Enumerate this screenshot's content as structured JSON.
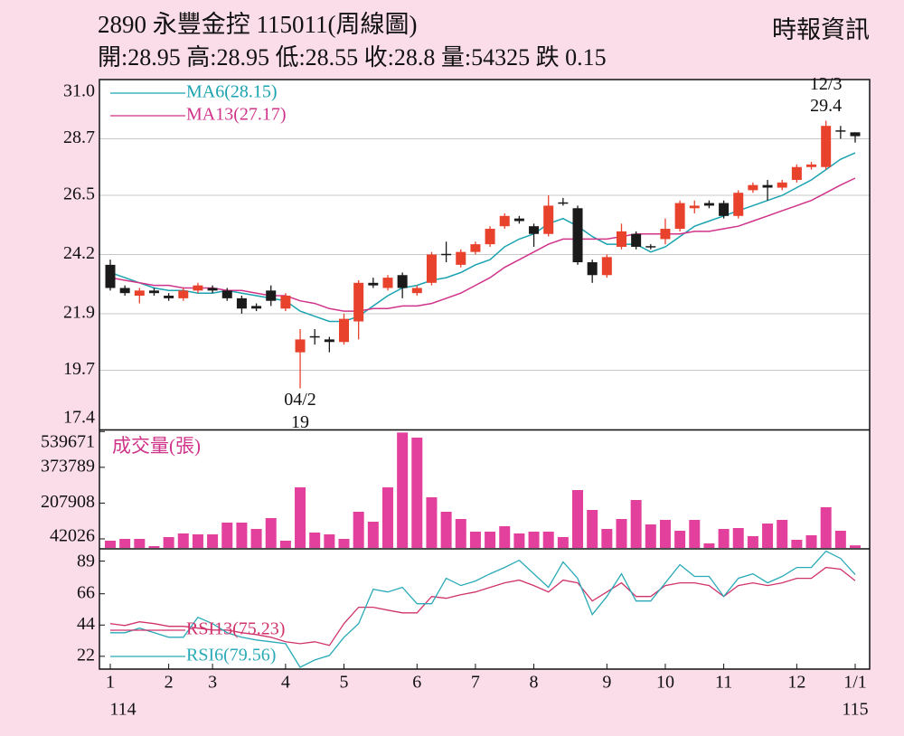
{
  "chart_data": {
    "type": "candlestick",
    "title": "2890  永豐金控 115011(周線圖)",
    "source": "時報資訊",
    "info": "開:28.95 高:28.95 低:28.55 收:28.8 量:54325 跌 0.15",
    "open": [
      23.8,
      22.9,
      22.6,
      22.8,
      22.6,
      22.5,
      22.8,
      22.9,
      22.8,
      22.5,
      22.2,
      22.8,
      22.1,
      20.4,
      21.0,
      20.9,
      20.8,
      21.6,
      23.1,
      22.9,
      23.4,
      22.7,
      23.1,
      24.2,
      23.8,
      24.3,
      24.6,
      25.3,
      25.6,
      25.3,
      25.0,
      26.2,
      26.0,
      23.9,
      23.4,
      24.5,
      25.0,
      24.5,
      24.8,
      25.2,
      26.0,
      26.2,
      26.2,
      25.7,
      26.7,
      26.9,
      26.8,
      27.1,
      27.6,
      27.6,
      29.0,
      28.95
    ],
    "high": [
      24.0,
      23.0,
      22.9,
      22.9,
      22.7,
      22.9,
      23.1,
      23.0,
      22.9,
      22.6,
      22.3,
      23.0,
      22.7,
      21.3,
      21.3,
      21.0,
      21.9,
      23.2,
      23.3,
      23.4,
      23.5,
      23.0,
      24.3,
      24.7,
      24.4,
      24.7,
      25.3,
      25.8,
      25.7,
      25.4,
      26.5,
      26.4,
      26.1,
      24.0,
      24.2,
      25.4,
      25.1,
      24.6,
      25.6,
      26.3,
      26.3,
      26.3,
      26.3,
      26.7,
      27.0,
      27.1,
      27.1,
      27.7,
      27.8,
      29.4,
      29.2,
      28.95
    ],
    "low": [
      22.8,
      22.6,
      22.3,
      22.6,
      22.4,
      22.4,
      22.7,
      22.7,
      22.4,
      21.9,
      22.0,
      22.2,
      22.0,
      19.0,
      20.7,
      20.4,
      20.7,
      20.9,
      22.9,
      22.8,
      22.5,
      22.6,
      23.0,
      23.9,
      23.7,
      24.2,
      24.5,
      25.2,
      25.4,
      24.5,
      24.9,
      26.1,
      23.8,
      23.1,
      23.3,
      24.4,
      24.4,
      24.4,
      24.6,
      25.1,
      25.8,
      26.0,
      25.6,
      25.6,
      26.6,
      26.3,
      26.7,
      27.0,
      27.5,
      27.5,
      28.7,
      28.55
    ],
    "close": [
      22.9,
      22.7,
      22.8,
      22.7,
      22.5,
      22.8,
      23.0,
      22.8,
      22.5,
      22.1,
      22.1,
      22.4,
      22.6,
      20.9,
      21.0,
      20.8,
      21.7,
      23.1,
      23.0,
      23.3,
      22.9,
      22.9,
      24.2,
      24.2,
      24.3,
      24.6,
      25.2,
      25.7,
      25.5,
      25.0,
      26.1,
      26.2,
      23.9,
      23.4,
      24.1,
      25.1,
      24.5,
      24.5,
      25.2,
      26.2,
      26.1,
      26.1,
      25.7,
      26.6,
      26.9,
      26.8,
      27.0,
      27.6,
      27.7,
      29.2,
      28.95,
      28.8
    ],
    "up_color": "#e8412c",
    "down_color": "#1a1a1a",
    "ylim": [
      17.4,
      31.0
    ],
    "yticks": [
      17.4,
      19.7,
      21.9,
      24.2,
      26.5,
      28.7,
      {
        "value": 31.0,
        "label": "31.0"
      }
    ],
    "grid": true,
    "ma": [
      {
        "name": "MA6(28.15)",
        "color": "#1aa3b0",
        "values": [
          23.5,
          23.3,
          23.1,
          22.9,
          22.8,
          22.8,
          22.7,
          22.7,
          22.8,
          22.7,
          22.6,
          22.5,
          22.4,
          22.0,
          21.8,
          21.6,
          21.6,
          21.8,
          22.2,
          22.6,
          22.9,
          23.0,
          23.2,
          23.3,
          23.5,
          23.8,
          24.0,
          24.5,
          24.8,
          25.0,
          25.4,
          25.6,
          25.3,
          24.9,
          24.6,
          24.6,
          24.6,
          24.3,
          24.5,
          24.9,
          25.3,
          25.5,
          25.7,
          25.9,
          26.1,
          26.3,
          26.5,
          26.8,
          27.1,
          27.5,
          27.9,
          28.15
        ]
      },
      {
        "name": "MA13(27.17)",
        "color": "#d0338a",
        "values": [
          23.3,
          23.2,
          23.1,
          23.0,
          23.0,
          22.9,
          22.9,
          22.9,
          22.8,
          22.8,
          22.7,
          22.6,
          22.6,
          22.4,
          22.3,
          22.1,
          22.0,
          22.0,
          22.1,
          22.1,
          22.2,
          22.2,
          22.3,
          22.5,
          22.7,
          23.0,
          23.3,
          23.7,
          24.0,
          24.3,
          24.6,
          24.8,
          24.8,
          24.8,
          24.8,
          24.9,
          25.0,
          25.0,
          25.0,
          25.0,
          25.1,
          25.1,
          25.2,
          25.3,
          25.5,
          25.7,
          25.9,
          26.1,
          26.3,
          26.6,
          26.9,
          27.17
        ]
      }
    ],
    "annotations": [
      {
        "label": "04/2",
        "value": 19,
        "index": 13
      },
      {
        "label": "12/3",
        "value": 29.4,
        "index": 49
      }
    ],
    "volume": {
      "label": "成交量(張)",
      "color": "#e2409c",
      "values": [
        33500,
        41900,
        41900,
        8400,
        50300,
        67100,
        62900,
        62900,
        117400,
        117400,
        88000,
        138300,
        33500,
        280900,
        71300,
        62900,
        41900,
        167700,
        121600,
        280900,
        535000,
        511400,
        234800,
        167700,
        134100,
        75500,
        75500,
        100600,
        67100,
        75500,
        75500,
        50300,
        268300,
        176100,
        88000,
        134100,
        222200,
        109000,
        130000,
        79600,
        130000,
        21000,
        88000,
        92200,
        54500,
        113200,
        130000,
        37700,
        58700,
        188600,
        79600,
        12000
      ],
      "ylim": [
        0,
        545000
      ],
      "yticks": [
        42026,
        207908,
        373789,
        539671
      ]
    },
    "rsi": {
      "ylim": [
        13,
        97
      ],
      "yticks": [
        22,
        44,
        66,
        89
      ],
      "series": [
        {
          "name": "RSI13(75.23)",
          "color": "#d0336c",
          "values": [
            45.0,
            43.7,
            46.3,
            45.0,
            43.1,
            43.1,
            41.8,
            40.5,
            40.5,
            38.6,
            37.3,
            35.4,
            32.2,
            30.9,
            32.2,
            29.7,
            45.0,
            56.5,
            56.5,
            54.5,
            52.6,
            52.6,
            64.1,
            62.8,
            65.4,
            67.3,
            70.5,
            73.7,
            75.6,
            71.8,
            67.3,
            75.6,
            73.7,
            60.9,
            67.3,
            73.7,
            64.1,
            64.1,
            71.8,
            73.7,
            73.7,
            71.8,
            64.1,
            71.8,
            73.7,
            71.8,
            73.7,
            76.9,
            76.9,
            84.5,
            83.3,
            75.23
          ]
        },
        {
          "name": "RSI6(79.56)",
          "color": "#2aaab8",
          "values": [
            38.6,
            38.6,
            41.8,
            38.6,
            35.4,
            35.4,
            49.4,
            45.0,
            38.6,
            35.4,
            33.5,
            32.2,
            30.9,
            14.3,
            19.4,
            22.6,
            35.4,
            45.0,
            69.2,
            67.3,
            70.5,
            59.0,
            59.0,
            76.9,
            71.8,
            75.0,
            80.1,
            84.5,
            89.6,
            80.1,
            70.5,
            88.4,
            76.9,
            51.4,
            64.1,
            80.1,
            60.9,
            60.9,
            73.7,
            86.5,
            78.2,
            78.2,
            64.1,
            76.9,
            80.1,
            73.7,
            78.2,
            84.5,
            84.5,
            96.0,
            90.9,
            79.56
          ]
        }
      ]
    },
    "xticks": [
      {
        "value": 0,
        "label": "1"
      },
      {
        "value": 4,
        "label": "2"
      },
      {
        "value": 7,
        "label": "3"
      },
      {
        "value": 12,
        "label": "4"
      },
      {
        "value": 16,
        "label": "5"
      },
      {
        "value": 21,
        "label": "6"
      },
      {
        "value": 25,
        "label": "7"
      },
      {
        "value": 29,
        "label": "8"
      },
      {
        "value": 34,
        "label": "9"
      },
      {
        "value": 38,
        "label": "10"
      },
      {
        "value": 42,
        "label": "11"
      },
      {
        "value": 47,
        "label": "12"
      },
      {
        "value": 51,
        "label": "1/1"
      }
    ],
    "year_labels": [
      "114",
      "115"
    ]
  }
}
